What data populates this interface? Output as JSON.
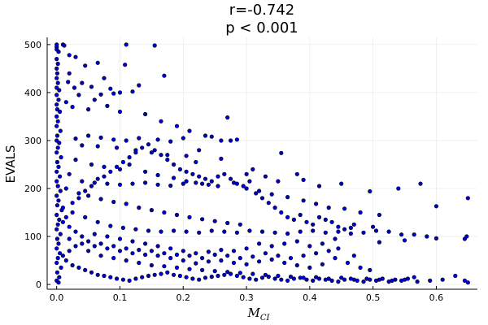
{
  "chart_data": {
    "type": "scatter",
    "title": "r=-0.742",
    "subtitle": "p < 0.001",
    "ylabel": "EVALS",
    "xlabel": "M",
    "xlabel_subscript": "CI",
    "xlim": [
      -0.015,
      0.665
    ],
    "ylim": [
      -10,
      515
    ],
    "xticks": [
      0.0,
      0.1,
      0.2,
      0.3,
      0.4,
      0.5,
      0.6
    ],
    "xtick_labels": [
      "0.0",
      "0.1",
      "0.2",
      "0.3",
      "0.4",
      "0.5",
      "0.6"
    ],
    "yticks": [
      0,
      100,
      200,
      300,
      400,
      500
    ],
    "ytick_labels": [
      "0",
      "100",
      "200",
      "300",
      "400",
      "500"
    ],
    "grid": true,
    "legend": "none",
    "marker_color": "#0000cc",
    "marker_edge": "#000000",
    "points": [
      [
        0.0,
        500
      ],
      [
        0.0,
        495
      ],
      [
        0.0,
        490
      ],
      [
        0.003,
        485
      ],
      [
        0.0,
        470
      ],
      [
        0.002,
        460
      ],
      [
        0.0,
        450
      ],
      [
        0.001,
        440
      ],
      [
        0.0,
        430
      ],
      [
        0.002,
        420
      ],
      [
        0.0,
        410
      ],
      [
        0.004,
        405
      ],
      [
        0.0,
        395
      ],
      [
        0.003,
        385
      ],
      [
        0.0,
        375
      ],
      [
        0.001,
        365
      ],
      [
        0.005,
        360
      ],
      [
        0.0,
        350
      ],
      [
        0.002,
        340
      ],
      [
        0.0,
        330
      ],
      [
        0.006,
        320
      ],
      [
        0.001,
        310
      ],
      [
        0.0,
        300
      ],
      [
        0.004,
        295
      ],
      [
        0.002,
        285
      ],
      [
        0.0,
        275
      ],
      [
        0.007,
        265
      ],
      [
        0.001,
        255
      ],
      [
        0.003,
        245
      ],
      [
        0.0,
        235
      ],
      [
        0.005,
        225
      ],
      [
        0.0,
        215
      ],
      [
        0.002,
        205
      ],
      [
        0.006,
        195
      ],
      [
        0.0,
        185
      ],
      [
        0.003,
        175
      ],
      [
        0.001,
        165
      ],
      [
        0.008,
        155
      ],
      [
        0.0,
        145
      ],
      [
        0.004,
        135
      ],
      [
        0.002,
        125
      ],
      [
        0.0,
        115
      ],
      [
        0.006,
        105
      ],
      [
        0.001,
        95
      ],
      [
        0.003,
        85
      ],
      [
        0.0,
        75
      ],
      [
        0.005,
        65
      ],
      [
        0.002,
        55
      ],
      [
        0.0,
        45
      ],
      [
        0.007,
        35
      ],
      [
        0.001,
        25
      ],
      [
        0.004,
        15
      ],
      [
        0.0,
        8
      ],
      [
        0.003,
        4
      ],
      [
        0.01,
        500
      ],
      [
        0.012,
        498
      ],
      [
        0.02,
        478
      ],
      [
        0.03,
        474
      ],
      [
        0.065,
        462
      ],
      [
        0.11,
        500
      ],
      [
        0.155,
        498
      ],
      [
        0.108,
        458
      ],
      [
        0.17,
        435
      ],
      [
        0.02,
        440
      ],
      [
        0.04,
        420
      ],
      [
        0.055,
        412
      ],
      [
        0.085,
        408
      ],
      [
        0.1,
        400
      ],
      [
        0.12,
        402
      ],
      [
        0.09,
        398
      ],
      [
        0.07,
        396
      ],
      [
        0.13,
        415
      ],
      [
        0.075,
        430
      ],
      [
        0.045,
        456
      ],
      [
        0.018,
        422
      ],
      [
        0.028,
        410
      ],
      [
        0.035,
        395
      ],
      [
        0.06,
        385
      ],
      [
        0.015,
        380
      ],
      [
        0.025,
        370
      ],
      [
        0.05,
        365
      ],
      [
        0.08,
        372
      ],
      [
        0.1,
        360
      ],
      [
        0.14,
        355
      ],
      [
        0.165,
        340
      ],
      [
        0.19,
        330
      ],
      [
        0.21,
        320
      ],
      [
        0.27,
        348
      ],
      [
        0.285,
        302
      ],
      [
        0.26,
        300
      ],
      [
        0.235,
        310
      ],
      [
        0.245,
        308
      ],
      [
        0.2,
        305
      ],
      [
        0.18,
        298
      ],
      [
        0.16,
        302
      ],
      [
        0.13,
        305
      ],
      [
        0.11,
        300
      ],
      [
        0.09,
        302
      ],
      [
        0.07,
        306
      ],
      [
        0.05,
        310
      ],
      [
        0.03,
        304
      ],
      [
        0.04,
        290
      ],
      [
        0.065,
        288
      ],
      [
        0.095,
        285
      ],
      [
        0.125,
        280
      ],
      [
        0.15,
        275
      ],
      [
        0.175,
        270
      ],
      [
        0.205,
        268
      ],
      [
        0.225,
        280
      ],
      [
        0.22,
        255
      ],
      [
        0.26,
        262
      ],
      [
        0.275,
        300
      ],
      [
        0.355,
        274
      ],
      [
        0.3,
        230
      ],
      [
        0.33,
        225
      ],
      [
        0.31,
        240
      ],
      [
        0.35,
        215
      ],
      [
        0.38,
        230
      ],
      [
        0.39,
        218
      ],
      [
        0.415,
        205
      ],
      [
        0.45,
        210
      ],
      [
        0.495,
        194
      ],
      [
        0.54,
        200
      ],
      [
        0.575,
        210
      ],
      [
        0.6,
        163
      ],
      [
        0.65,
        180
      ],
      [
        0.03,
        260
      ],
      [
        0.055,
        250
      ],
      [
        0.075,
        245
      ],
      [
        0.1,
        240
      ],
      [
        0.115,
        250
      ],
      [
        0.14,
        235
      ],
      [
        0.16,
        228
      ],
      [
        0.185,
        222
      ],
      [
        0.205,
        215
      ],
      [
        0.23,
        210
      ],
      [
        0.255,
        205
      ],
      [
        0.28,
        212
      ],
      [
        0.3,
        200
      ],
      [
        0.32,
        195
      ],
      [
        0.34,
        188
      ],
      [
        0.365,
        182
      ],
      [
        0.39,
        175
      ],
      [
        0.41,
        168
      ],
      [
        0.43,
        160
      ],
      [
        0.455,
        158
      ],
      [
        0.48,
        150
      ],
      [
        0.51,
        145
      ],
      [
        0.02,
        230
      ],
      [
        0.04,
        215
      ],
      [
        0.06,
        212
      ],
      [
        0.08,
        210
      ],
      [
        0.1,
        208
      ],
      [
        0.12,
        210
      ],
      [
        0.14,
        212
      ],
      [
        0.16,
        208
      ],
      [
        0.18,
        206
      ],
      [
        0.2,
        210
      ],
      [
        0.22,
        212
      ],
      [
        0.24,
        208
      ],
      [
        0.015,
        200
      ],
      [
        0.035,
        190
      ],
      [
        0.05,
        185
      ],
      [
        0.07,
        178
      ],
      [
        0.09,
        172
      ],
      [
        0.11,
        168
      ],
      [
        0.13,
        160
      ],
      [
        0.15,
        155
      ],
      [
        0.17,
        150
      ],
      [
        0.19,
        145
      ],
      [
        0.21,
        140
      ],
      [
        0.23,
        136
      ],
      [
        0.25,
        132
      ],
      [
        0.27,
        128
      ],
      [
        0.29,
        125
      ],
      [
        0.01,
        160
      ],
      [
        0.025,
        150
      ],
      [
        0.045,
        140
      ],
      [
        0.065,
        130
      ],
      [
        0.085,
        122
      ],
      [
        0.105,
        118
      ],
      [
        0.125,
        115
      ],
      [
        0.145,
        112
      ],
      [
        0.165,
        110
      ],
      [
        0.185,
        112
      ],
      [
        0.205,
        110
      ],
      [
        0.225,
        108
      ],
      [
        0.245,
        112
      ],
      [
        0.265,
        110
      ],
      [
        0.285,
        108
      ],
      [
        0.305,
        112
      ],
      [
        0.325,
        110
      ],
      [
        0.345,
        108
      ],
      [
        0.365,
        106
      ],
      [
        0.385,
        110
      ],
      [
        0.405,
        112
      ],
      [
        0.425,
        108
      ],
      [
        0.445,
        110
      ],
      [
        0.465,
        106
      ],
      [
        0.485,
        108
      ],
      [
        0.505,
        112
      ],
      [
        0.525,
        110
      ],
      [
        0.545,
        104
      ],
      [
        0.565,
        104
      ],
      [
        0.585,
        100
      ],
      [
        0.6,
        96
      ],
      [
        0.645,
        95
      ],
      [
        0.648,
        100
      ],
      [
        0.47,
        125
      ],
      [
        0.5,
        120
      ],
      [
        0.55,
        92
      ],
      [
        0.51,
        88
      ],
      [
        0.44,
        95
      ],
      [
        0.42,
        85
      ],
      [
        0.4,
        80
      ],
      [
        0.38,
        90
      ],
      [
        0.36,
        85
      ],
      [
        0.34,
        80
      ],
      [
        0.32,
        85
      ],
      [
        0.3,
        75
      ],
      [
        0.28,
        70
      ],
      [
        0.26,
        72
      ],
      [
        0.24,
        68
      ],
      [
        0.22,
        65
      ],
      [
        0.2,
        70
      ],
      [
        0.18,
        75
      ],
      [
        0.16,
        80
      ],
      [
        0.14,
        85
      ],
      [
        0.12,
        90
      ],
      [
        0.1,
        95
      ],
      [
        0.08,
        100
      ],
      [
        0.06,
        105
      ],
      [
        0.04,
        100
      ],
      [
        0.02,
        95
      ],
      [
        0.03,
        80
      ],
      [
        0.05,
        70
      ],
      [
        0.07,
        60
      ],
      [
        0.09,
        55
      ],
      [
        0.11,
        50
      ],
      [
        0.13,
        45
      ],
      [
        0.15,
        40
      ],
      [
        0.17,
        38
      ],
      [
        0.19,
        35
      ],
      [
        0.21,
        32
      ],
      [
        0.23,
        30
      ],
      [
        0.25,
        28
      ],
      [
        0.27,
        26
      ],
      [
        0.29,
        24
      ],
      [
        0.31,
        22
      ],
      [
        0.33,
        20
      ],
      [
        0.35,
        18
      ],
      [
        0.37,
        16
      ],
      [
        0.39,
        14
      ],
      [
        0.41,
        15
      ],
      [
        0.43,
        12
      ],
      [
        0.45,
        14
      ],
      [
        0.47,
        10
      ],
      [
        0.49,
        12
      ],
      [
        0.51,
        10
      ],
      [
        0.53,
        8
      ],
      [
        0.55,
        10
      ],
      [
        0.57,
        6
      ],
      [
        0.59,
        8
      ],
      [
        0.61,
        10
      ],
      [
        0.63,
        18
      ],
      [
        0.645,
        8
      ],
      [
        0.65,
        4
      ],
      [
        0.565,
        15
      ],
      [
        0.495,
        30
      ],
      [
        0.46,
        45
      ],
      [
        0.44,
        55
      ],
      [
        0.42,
        42
      ],
      [
        0.4,
        35
      ],
      [
        0.38,
        40
      ],
      [
        0.36,
        45
      ],
      [
        0.34,
        52
      ],
      [
        0.32,
        48
      ],
      [
        0.3,
        42
      ],
      [
        0.28,
        45
      ],
      [
        0.26,
        50
      ],
      [
        0.24,
        48
      ],
      [
        0.22,
        44
      ],
      [
        0.2,
        50
      ],
      [
        0.18,
        55
      ],
      [
        0.16,
        60
      ],
      [
        0.14,
        62
      ],
      [
        0.12,
        65
      ],
      [
        0.1,
        70
      ],
      [
        0.08,
        75
      ],
      [
        0.06,
        80
      ],
      [
        0.04,
        85
      ],
      [
        0.02,
        70
      ],
      [
        0.01,
        60
      ],
      [
        0.015,
        50
      ],
      [
        0.025,
        40
      ],
      [
        0.035,
        35
      ],
      [
        0.045,
        30
      ],
      [
        0.055,
        25
      ],
      [
        0.065,
        20
      ],
      [
        0.075,
        18
      ],
      [
        0.085,
        15
      ],
      [
        0.095,
        12
      ],
      [
        0.105,
        10
      ],
      [
        0.115,
        8
      ],
      [
        0.125,
        12
      ],
      [
        0.135,
        15
      ],
      [
        0.145,
        18
      ],
      [
        0.155,
        20
      ],
      [
        0.165,
        22
      ],
      [
        0.175,
        25
      ],
      [
        0.185,
        20
      ],
      [
        0.195,
        18
      ],
      [
        0.205,
        15
      ],
      [
        0.215,
        12
      ],
      [
        0.225,
        10
      ],
      [
        0.235,
        14
      ],
      [
        0.245,
        16
      ],
      [
        0.255,
        18
      ],
      [
        0.265,
        20
      ],
      [
        0.275,
        22
      ],
      [
        0.285,
        18
      ],
      [
        0.295,
        15
      ],
      [
        0.305,
        12
      ],
      [
        0.315,
        10
      ],
      [
        0.325,
        14
      ],
      [
        0.335,
        16
      ],
      [
        0.345,
        12
      ],
      [
        0.355,
        10
      ],
      [
        0.365,
        8
      ],
      [
        0.375,
        12
      ],
      [
        0.385,
        14
      ],
      [
        0.395,
        10
      ],
      [
        0.405,
        8
      ],
      [
        0.415,
        12
      ],
      [
        0.425,
        10
      ],
      [
        0.435,
        8
      ],
      [
        0.445,
        6
      ],
      [
        0.455,
        10
      ],
      [
        0.465,
        12
      ],
      [
        0.475,
        8
      ],
      [
        0.485,
        6
      ],
      [
        0.495,
        10
      ],
      [
        0.505,
        8
      ],
      [
        0.515,
        12
      ],
      [
        0.525,
        6
      ],
      [
        0.535,
        10
      ],
      [
        0.545,
        8
      ],
      [
        0.555,
        12
      ],
      [
        0.48,
        35
      ],
      [
        0.47,
        60
      ],
      [
        0.445,
        75
      ],
      [
        0.43,
        70
      ],
      [
        0.41,
        65
      ],
      [
        0.39,
        60
      ],
      [
        0.37,
        55
      ],
      [
        0.35,
        60
      ],
      [
        0.33,
        65
      ],
      [
        0.31,
        58
      ],
      [
        0.29,
        55
      ],
      [
        0.27,
        60
      ],
      [
        0.25,
        62
      ],
      [
        0.23,
        55
      ],
      [
        0.21,
        60
      ],
      [
        0.19,
        62
      ],
      [
        0.17,
        65
      ],
      [
        0.15,
        70
      ],
      [
        0.13,
        72
      ],
      [
        0.11,
        75
      ],
      [
        0.09,
        80
      ],
      [
        0.07,
        85
      ],
      [
        0.05,
        90
      ],
      [
        0.03,
        110
      ],
      [
        0.02,
        120
      ],
      [
        0.01,
        130
      ],
      [
        0.015,
        140
      ],
      [
        0.025,
        170
      ],
      [
        0.035,
        180
      ],
      [
        0.045,
        195
      ],
      [
        0.055,
        205
      ],
      [
        0.065,
        220
      ],
      [
        0.075,
        225
      ],
      [
        0.085,
        235
      ],
      [
        0.095,
        245
      ],
      [
        0.105,
        255
      ],
      [
        0.115,
        265
      ],
      [
        0.125,
        275
      ],
      [
        0.135,
        285
      ],
      [
        0.145,
        292
      ],
      [
        0.155,
        280
      ],
      [
        0.165,
        270
      ],
      [
        0.175,
        260
      ],
      [
        0.185,
        250
      ],
      [
        0.195,
        240
      ],
      [
        0.205,
        235
      ],
      [
        0.215,
        230
      ],
      [
        0.225,
        225
      ],
      [
        0.235,
        220
      ],
      [
        0.245,
        215
      ],
      [
        0.255,
        225
      ],
      [
        0.265,
        230
      ],
      [
        0.275,
        220
      ],
      [
        0.285,
        210
      ],
      [
        0.295,
        205
      ],
      [
        0.305,
        215
      ],
      [
        0.315,
        190
      ],
      [
        0.325,
        180
      ],
      [
        0.335,
        170
      ],
      [
        0.345,
        160
      ],
      [
        0.355,
        150
      ],
      [
        0.365,
        140
      ],
      [
        0.375,
        135
      ],
      [
        0.385,
        145
      ],
      [
        0.395,
        130
      ],
      [
        0.405,
        125
      ],
      [
        0.415,
        140
      ],
      [
        0.425,
        135
      ],
      [
        0.435,
        130
      ],
      [
        0.445,
        120
      ],
      [
        0.455,
        115
      ],
      [
        0.465,
        118
      ]
    ]
  }
}
